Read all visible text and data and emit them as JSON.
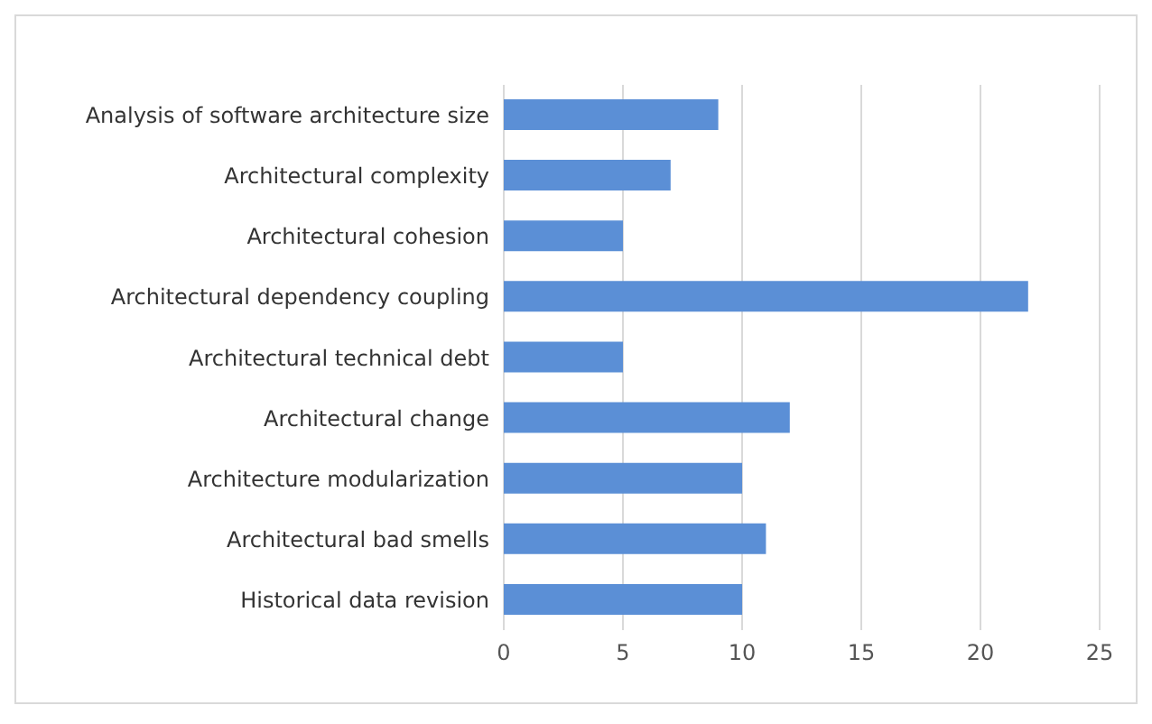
{
  "chart_data": {
    "type": "bar",
    "orientation": "horizontal",
    "categories": [
      "Analysis of software architecture size",
      "Architectural complexity",
      "Architectural cohesion",
      "Architectural dependency coupling",
      "Architectural technical debt",
      "Architectural change",
      "Architecture modularization",
      "Architectural bad smells",
      "Historical data revision"
    ],
    "values": [
      9,
      7,
      5,
      22,
      5,
      12,
      10,
      11,
      10
    ],
    "color": "#5b8fd6",
    "xlim": [
      0,
      25
    ],
    "xticks": [
      0,
      5,
      10,
      15,
      20,
      25
    ],
    "grid": "x"
  }
}
